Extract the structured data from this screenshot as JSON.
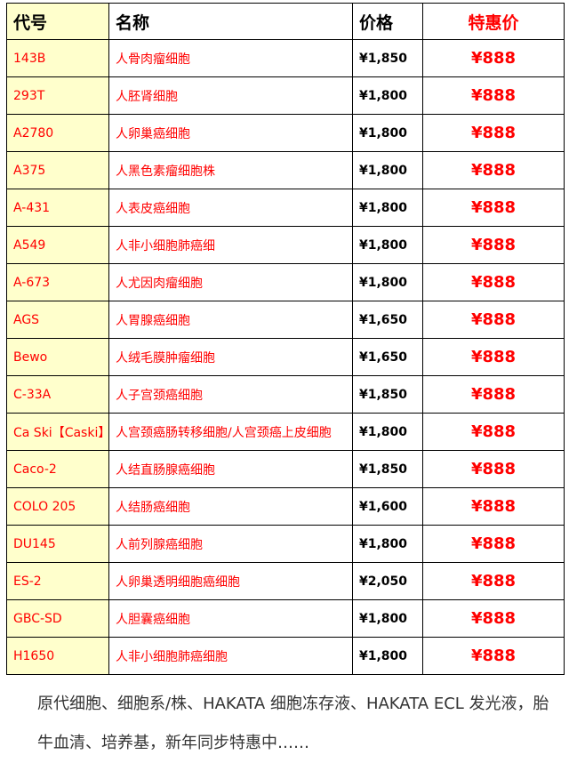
{
  "table": {
    "headers": {
      "code": "代号",
      "name": "名称",
      "price": "价格",
      "special": "特惠价"
    },
    "rows": [
      {
        "code": "143B",
        "name": "人骨肉瘤细胞",
        "price": "¥1,850",
        "special": "¥888"
      },
      {
        "code": "293T",
        "name": "人胚肾细胞",
        "price": "¥1,800",
        "special": "¥888"
      },
      {
        "code": "A2780",
        "name": "人卵巢癌细胞",
        "price": "¥1,800",
        "special": "¥888"
      },
      {
        "code": "A375",
        "name": "人黑色素瘤细胞株",
        "price": "¥1,800",
        "special": "¥888"
      },
      {
        "code": "A-431",
        "name": "人表皮癌细胞",
        "price": "¥1,800",
        "special": "¥888"
      },
      {
        "code": "A549",
        "name": "人非小细胞肺癌细",
        "price": "¥1,800",
        "special": "¥888"
      },
      {
        "code": "A-673",
        "name": "人尤因肉瘤细胞",
        "price": "¥1,800",
        "special": "¥888"
      },
      {
        "code": "AGS",
        "name": "人胃腺癌细胞",
        "price": "¥1,650",
        "special": "¥888"
      },
      {
        "code": "Bewo",
        "name": "人绒毛膜肿瘤细胞",
        "price": "¥1,650",
        "special": "¥888"
      },
      {
        "code": "C-33A",
        "name": "人子宫颈癌细胞",
        "price": "¥1,850",
        "special": "¥888"
      },
      {
        "code": "Ca Ski【Caski】",
        "name": "人宫颈癌肠转移细胞/人宫颈癌上皮细胞",
        "price": "¥1,800",
        "special": "¥888"
      },
      {
        "code": "Caco-2",
        "name": "人结直肠腺癌细胞",
        "price": "¥1,850",
        "special": "¥888"
      },
      {
        "code": "COLO 205",
        "name": "人结肠癌细胞",
        "price": "¥1,600",
        "special": "¥888"
      },
      {
        "code": "DU145",
        "name": "人前列腺癌细胞",
        "price": "¥1,800",
        "special": "¥888"
      },
      {
        "code": "ES-2",
        "name": "人卵巢透明细胞癌细胞",
        "price": "¥2,050",
        "special": "¥888"
      },
      {
        "code": "GBC-SD",
        "name": "人胆囊癌细胞",
        "price": "¥1,800",
        "special": "¥888"
      },
      {
        "code": "H1650",
        "name": "人非小细胞肺癌细胞",
        "price": "¥1,800",
        "special": "¥888"
      }
    ]
  },
  "note": "原代细胞、细胞系/株、HAKATA 细胞冻存液、HAKATA ECL 发光液，胎牛血清、培养基，新年同步特惠中……",
  "colors": {
    "accent": "#ff0000",
    "code_bg": "#ffffcc"
  }
}
